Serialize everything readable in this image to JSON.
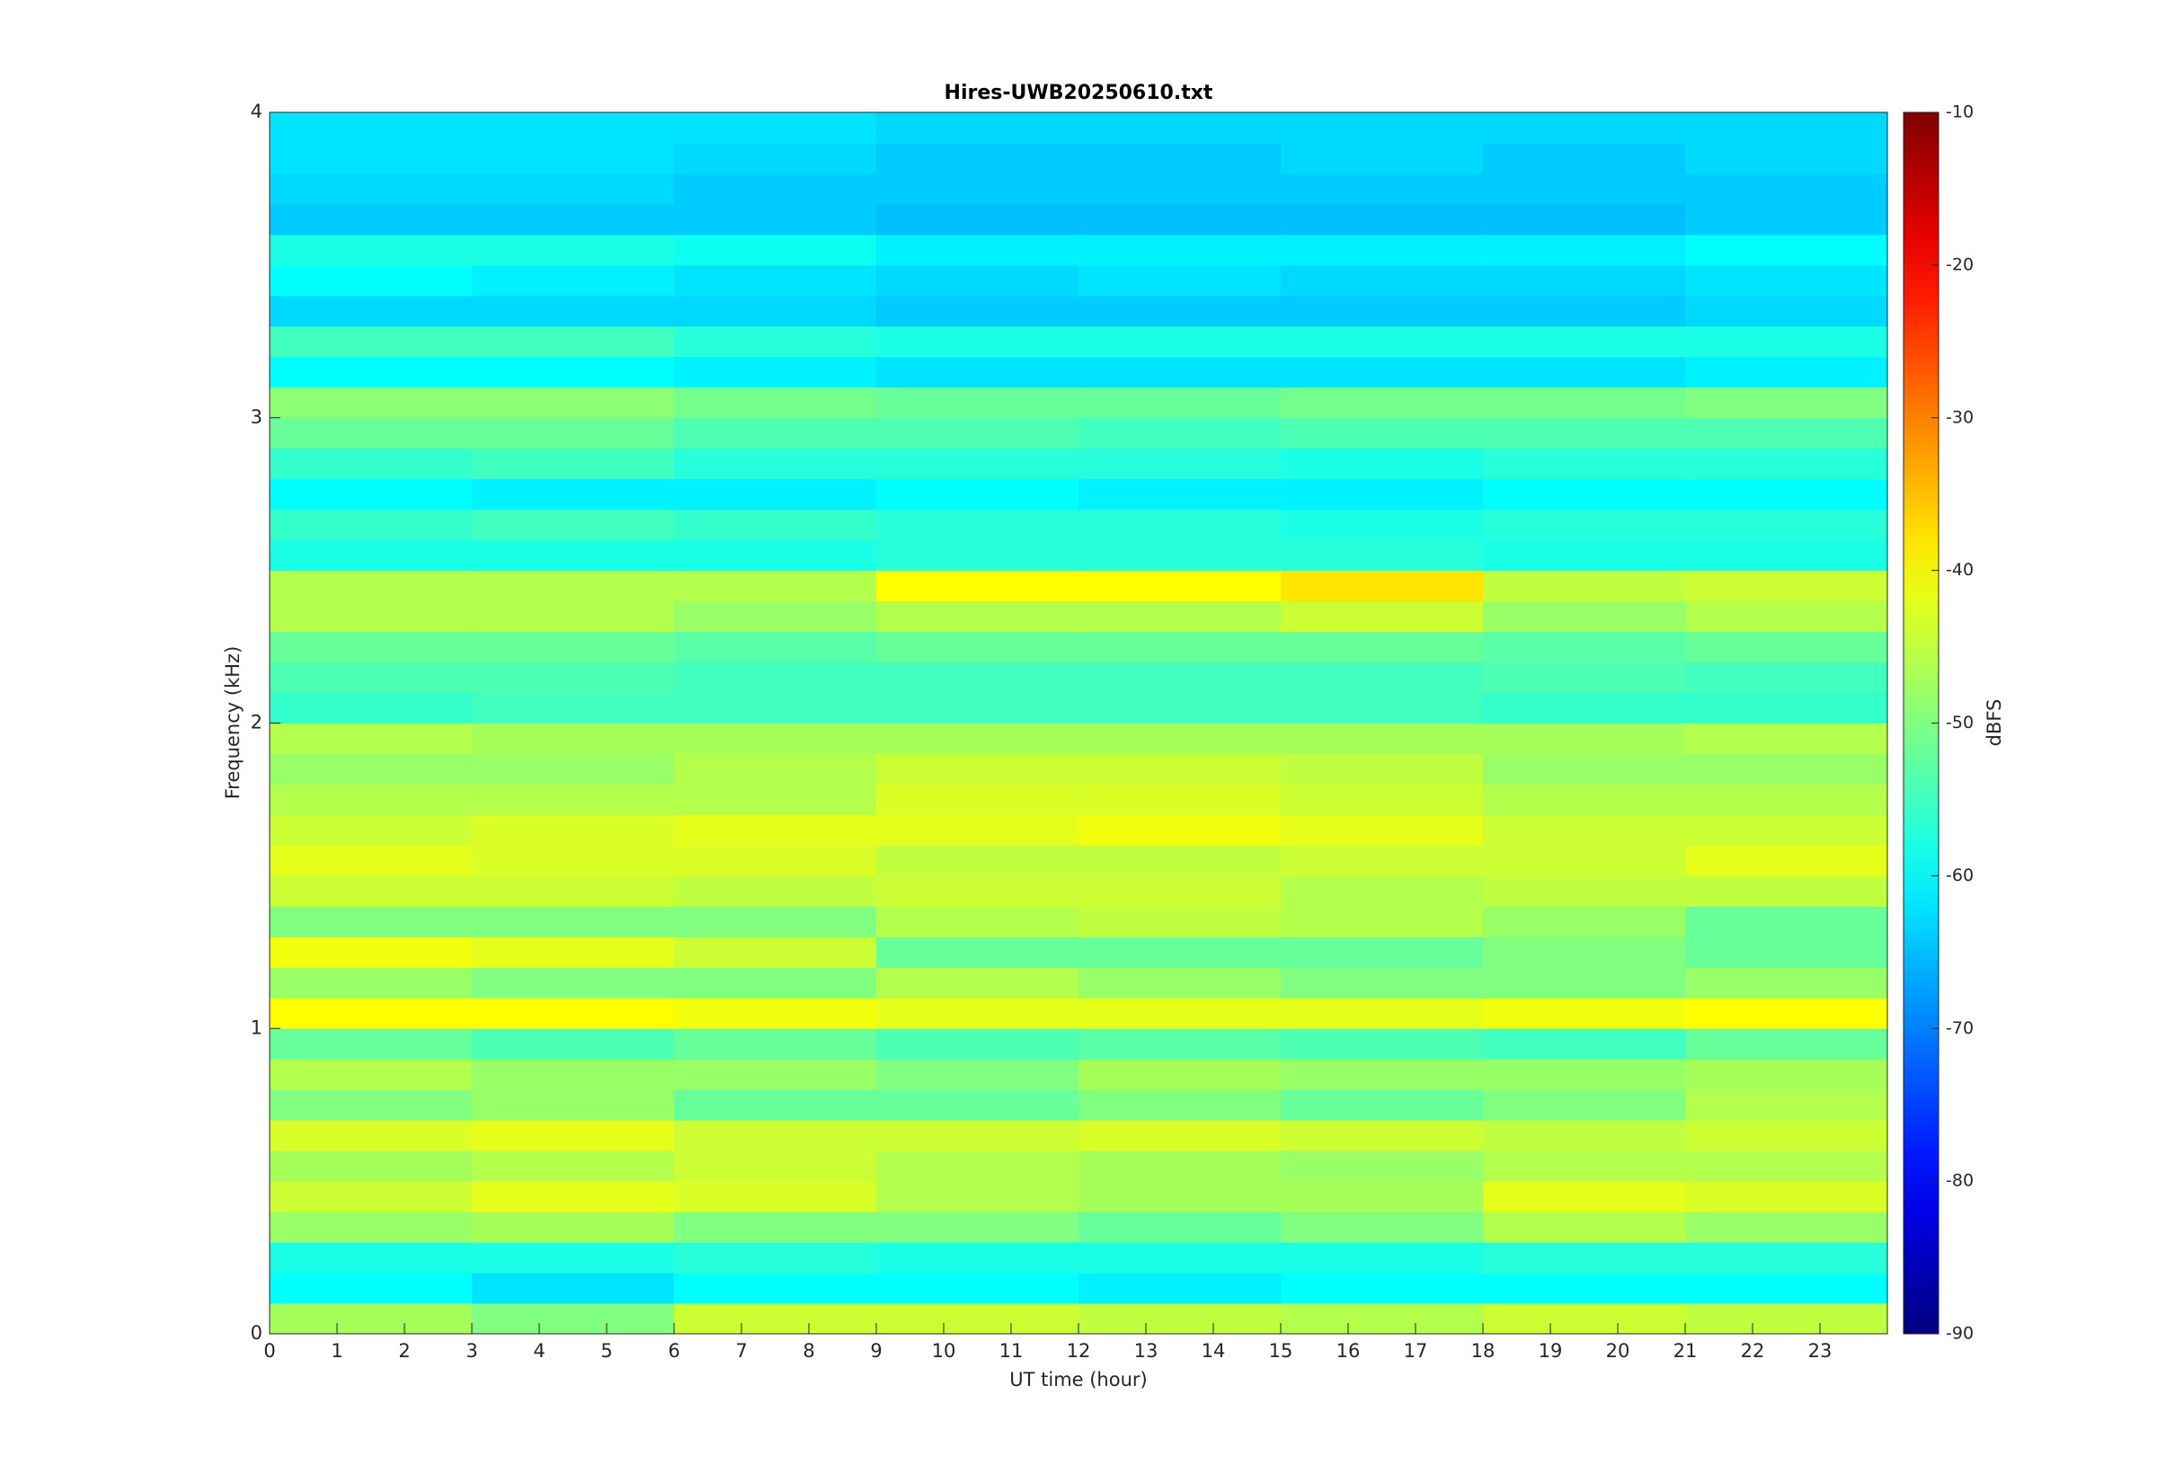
{
  "chart_data": {
    "type": "heatmap",
    "title": "Hires-UWB20250610.txt",
    "x_label": "UT time (hour)",
    "y_label": "Frequency (kHz)",
    "colorbar_label": "dBFS",
    "colormap": "jet",
    "xlim": [
      0,
      24
    ],
    "xticks": [
      0,
      1,
      2,
      3,
      4,
      5,
      6,
      7,
      8,
      9,
      10,
      11,
      12,
      13,
      14,
      15,
      16,
      17,
      18,
      19,
      20,
      21,
      22,
      23
    ],
    "ylim": [
      0,
      4
    ],
    "yticks": [
      0,
      1,
      2,
      3,
      4
    ],
    "clim": [
      -90,
      -10
    ],
    "cticks": [
      -90,
      -80,
      -70,
      -60,
      -50,
      -40,
      -30,
      -20,
      -10
    ],
    "x_bins": [
      0,
      3,
      6,
      9,
      12,
      15,
      18,
      21,
      24
    ],
    "y_bins": [
      0,
      0.1,
      0.2,
      0.3,
      0.4,
      0.5,
      0.6,
      0.7,
      0.8,
      0.9,
      1,
      1.1,
      1.2,
      1.3,
      1.4,
      1.5,
      1.6,
      1.7,
      1.8,
      1.9,
      2,
      2.1,
      2.2,
      2.3,
      2.4,
      2.5,
      2.6,
      2.7,
      2.8,
      2.9,
      3,
      3.1,
      3.2,
      3.3,
      3.4,
      3.5,
      3.6,
      3.7,
      3.8,
      3.9,
      4
    ],
    "z": [
      [
        -47,
        -50,
        -44,
        -44,
        -45,
        -46,
        -44,
        -45
      ],
      [
        -60,
        -62,
        -60,
        -60,
        -61,
        -60,
        -60,
        -60
      ],
      [
        -58,
        -58,
        -57,
        -58,
        -58,
        -58,
        -57,
        -57
      ],
      [
        -48,
        -47,
        -50,
        -50,
        -52,
        -50,
        -46,
        -48
      ],
      [
        -44,
        -42,
        -43,
        -46,
        -47,
        -47,
        -42,
        -43
      ],
      [
        -47,
        -46,
        -44,
        -46,
        -47,
        -48,
        -46,
        -46
      ],
      [
        -43,
        -42,
        -44,
        -44,
        -43,
        -44,
        -45,
        -44
      ],
      [
        -50,
        -48,
        -52,
        -52,
        -50,
        -52,
        -50,
        -46
      ],
      [
        -46,
        -48,
        -48,
        -50,
        -47,
        -48,
        -48,
        -47
      ],
      [
        -52,
        -54,
        -52,
        -54,
        -53,
        -54,
        -55,
        -52
      ],
      [
        -40,
        -40,
        -41,
        -42,
        -42,
        -42,
        -41,
        -40
      ],
      [
        -48,
        -50,
        -50,
        -46,
        -48,
        -50,
        -50,
        -48
      ],
      [
        -41,
        -42,
        -44,
        -52,
        -52,
        -52,
        -50,
        -52
      ],
      [
        -50,
        -50,
        -50,
        -46,
        -45,
        -46,
        -48,
        -52
      ],
      [
        -44,
        -44,
        -45,
        -44,
        -44,
        -46,
        -45,
        -45
      ],
      [
        -42,
        -43,
        -43,
        -45,
        -45,
        -44,
        -44,
        -42
      ],
      [
        -44,
        -43,
        -42,
        -42,
        -41,
        -42,
        -44,
        -44
      ],
      [
        -46,
        -46,
        -46,
        -43,
        -43,
        -44,
        -46,
        -46
      ],
      [
        -48,
        -48,
        -46,
        -44,
        -44,
        -45,
        -48,
        -48
      ],
      [
        -46,
        -47,
        -47,
        -47,
        -47,
        -47,
        -47,
        -46
      ],
      [
        -56,
        -55,
        -55,
        -55,
        -55,
        -55,
        -56,
        -56
      ],
      [
        -54,
        -54,
        -55,
        -55,
        -55,
        -55,
        -54,
        -55
      ],
      [
        -52,
        -52,
        -53,
        -52,
        -52,
        -52,
        -53,
        -52
      ],
      [
        -46,
        -46,
        -48,
        -46,
        -46,
        -44,
        -48,
        -46
      ],
      [
        -46,
        -46,
        -46,
        -40,
        -40,
        -38,
        -45,
        -44
      ],
      [
        -58,
        -58,
        -58,
        -57,
        -57,
        -57,
        -58,
        -58
      ],
      [
        -56,
        -55,
        -56,
        -57,
        -57,
        -58,
        -57,
        -57
      ],
      [
        -60,
        -61,
        -61,
        -60,
        -61,
        -61,
        -60,
        -60
      ],
      [
        -56,
        -55,
        -57,
        -57,
        -57,
        -58,
        -57,
        -57
      ],
      [
        -52,
        -52,
        -54,
        -54,
        -55,
        -54,
        -54,
        -54
      ],
      [
        -49,
        -49,
        -51,
        -52,
        -52,
        -51,
        -51,
        -50
      ],
      [
        -60,
        -60,
        -61,
        -62,
        -62,
        -62,
        -62,
        -61
      ],
      [
        -55,
        -55,
        -57,
        -58,
        -58,
        -58,
        -58,
        -58
      ],
      [
        -63,
        -63,
        -63,
        -64,
        -64,
        -64,
        -64,
        -63
      ],
      [
        -60,
        -61,
        -62,
        -63,
        -62,
        -63,
        -63,
        -62
      ],
      [
        -58,
        -58,
        -59,
        -61,
        -61,
        -61,
        -61,
        -60
      ],
      [
        -64,
        -64,
        -64,
        -65,
        -65,
        -65,
        -65,
        -64
      ],
      [
        -63,
        -63,
        -64,
        -64,
        -64,
        -64,
        -64,
        -64
      ],
      [
        -62,
        -62,
        -63,
        -64,
        -64,
        -63,
        -64,
        -63
      ],
      [
        -62,
        -62,
        -62,
        -63,
        -63,
        -63,
        -63,
        -63
      ]
    ]
  }
}
